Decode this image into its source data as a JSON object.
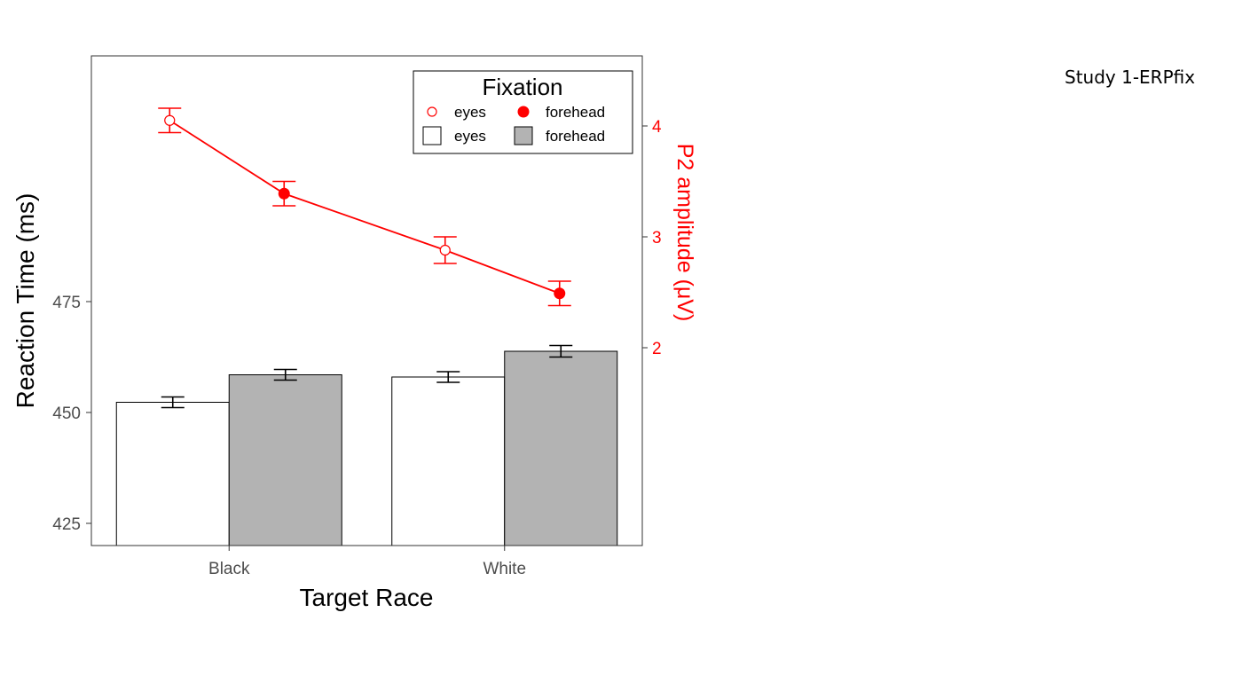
{
  "page": {
    "label": "Study 1-ERPfix"
  },
  "chart_data": {
    "type": "bar",
    "categories": [
      "Black",
      "White"
    ],
    "xlabel": "Target Race",
    "ylabel": "Reaction Time (ms)",
    "y2label": "P2 amplitude (μV)",
    "ylim": [
      420,
      530
    ],
    "yticks": [
      425,
      450,
      475
    ],
    "y2lim": [
      0.2,
      4.6
    ],
    "y2ticks": [
      2,
      3,
      4
    ],
    "legend": {
      "title": "Fixation",
      "placement": "top-right",
      "point_entries": [
        "eyes",
        "forehead"
      ],
      "bar_entries": [
        "eyes",
        "forehead"
      ]
    },
    "bar_series": [
      {
        "name": "eyes",
        "values": [
          452.3,
          458.0
        ],
        "errors": [
          1.2,
          1.2
        ],
        "color": "#ffffff"
      },
      {
        "name": "forehead",
        "values": [
          458.5,
          463.8
        ],
        "errors": [
          1.2,
          1.3
        ],
        "color": "#b3b3b3"
      }
    ],
    "line_series": {
      "color": "#ff0000",
      "points": [
        {
          "category": "Black",
          "fixation": "eyes",
          "value": 4.05,
          "error": 0.11
        },
        {
          "category": "Black",
          "fixation": "forehead",
          "value": 3.39,
          "error": 0.11
        },
        {
          "category": "White",
          "fixation": "eyes",
          "value": 2.88,
          "error": 0.12
        },
        {
          "category": "White",
          "fixation": "forehead",
          "value": 2.49,
          "error": 0.11
        }
      ]
    }
  }
}
